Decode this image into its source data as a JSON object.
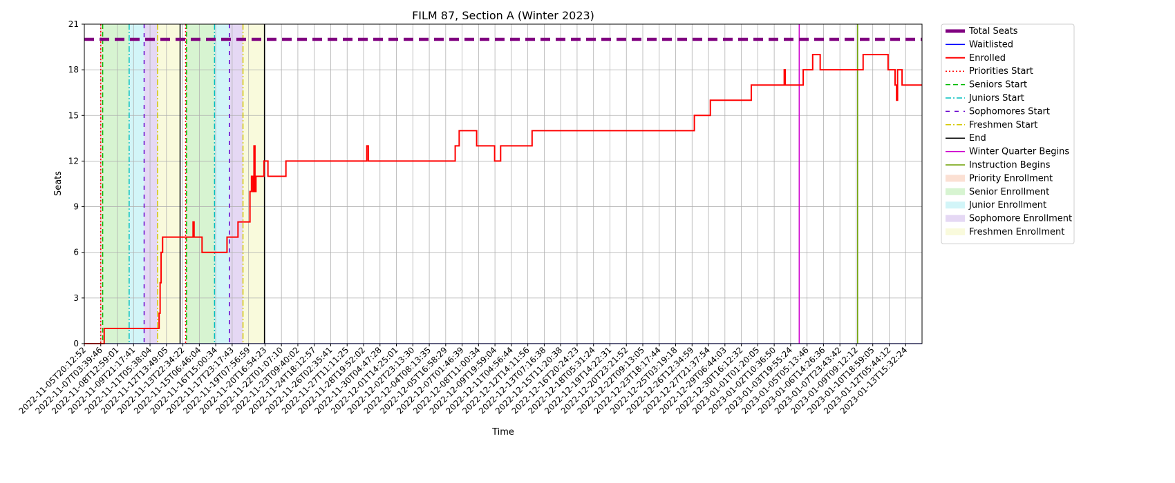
{
  "chart_data": {
    "type": "line",
    "title": "FILM 87, Section A (Winter 2023)",
    "xlabel": "Time",
    "ylabel": "Seats",
    "ylim": [
      0,
      21
    ],
    "yticks": [
      0,
      3,
      6,
      9,
      12,
      15,
      18,
      21
    ],
    "xlim": [
      "2022-11-05T20:12:52",
      "2023-01-14T18:00:00"
    ],
    "grid": true,
    "legend_placement": "outside-right-top",
    "xtick_labels": [
      "2022-11-05T20:12:52",
      "2022-11-07T03:39:46",
      "2022-11-08T12:59:01",
      "2022-11-09T21:17:41",
      "2022-11-11T05:38:04",
      "2022-11-12T13:49:05",
      "2022-11-13T22:34:22",
      "2022-11-15T06:46:04",
      "2022-11-16T15:00:34",
      "2022-11-17T23:17:43",
      "2022-11-19T07:56:59",
      "2022-11-20T16:54:23",
      "2022-11-22T01:07:10",
      "2022-11-23T09:40:02",
      "2022-11-24T18:12:57",
      "2022-11-26T02:35:41",
      "2022-11-27T11:11:25",
      "2022-11-28T19:52:02",
      "2022-11-30T04:47:28",
      "2022-12-01T14:25:01",
      "2022-12-02T23:13:30",
      "2022-12-04T08:13:35",
      "2022-12-05T16:58:29",
      "2022-12-07T01:46:39",
      "2022-12-08T11:00:34",
      "2022-12-09T19:59:04",
      "2022-12-11T04:56:44",
      "2022-12-12T14:11:56",
      "2022-12-13T07:16:38",
      "2022-12-15T11:20:38",
      "2022-12-16T20:24:23",
      "2022-12-18T05:31:24",
      "2022-12-19T14:22:31",
      "2022-12-20T23:21:52",
      "2022-12-22T09:13:05",
      "2022-12-23T18:17:44",
      "2022-12-25T03:19:18",
      "2022-12-26T12:34:59",
      "2022-12-27T21:37:54",
      "2022-12-29T06:44:03",
      "2022-12-30T16:12:32",
      "2023-01-01T01:20:05",
      "2023-01-02T10:36:50",
      "2023-01-03T19:55:24",
      "2023-01-05T05:13:46",
      "2023-01-06T14:26:36",
      "2023-01-07T23:43:42",
      "2023-01-09T09:12:12",
      "2023-01-10T18:59:05",
      "2023-01-12T05:44:12",
      "2023-01-13T15:32:24"
    ],
    "series": [
      {
        "name": "Total Seats",
        "color": "#800080",
        "style": "dashed-thick",
        "points": [
          [
            "2022-11-05T20:12:52",
            20
          ],
          [
            "2023-01-14T18:00:00",
            20
          ]
        ]
      },
      {
        "name": "Waitlisted",
        "color": "#0000ff",
        "style": "solid",
        "points": [
          [
            "2022-11-05T20:12:52",
            0
          ],
          [
            "2023-01-14T18:00:00",
            0
          ]
        ]
      },
      {
        "name": "Enrolled",
        "color": "#ff0000",
        "style": "step",
        "points": [
          [
            "2022-11-05T20:12:52",
            0
          ],
          [
            "2022-11-07T12:00:00",
            1
          ],
          [
            "2022-11-12T02:00:00",
            2
          ],
          [
            "2022-11-12T04:00:00",
            4
          ],
          [
            "2022-11-12T06:00:00",
            6
          ],
          [
            "2022-11-12T09:00:00",
            7
          ],
          [
            "2022-11-14T22:00:00",
            8
          ],
          [
            "2022-11-15T00:00:00",
            7
          ],
          [
            "2022-11-15T16:00:00",
            6
          ],
          [
            "2022-11-17T18:00:00",
            7
          ],
          [
            "2022-11-18T16:00:00",
            8
          ],
          [
            "2022-11-19T16:00:00",
            10
          ],
          [
            "2022-11-19T19:00:00",
            11
          ],
          [
            "2022-11-19T22:00:00",
            10
          ],
          [
            "2022-11-20T00:00:00",
            13
          ],
          [
            "2022-11-20T02:00:00",
            10
          ],
          [
            "2022-11-20T04:00:00",
            11
          ],
          [
            "2022-11-20T20:00:00",
            12
          ],
          [
            "2022-11-21T04:00:00",
            11
          ],
          [
            "2022-11-22T16:00:00",
            12
          ],
          [
            "2022-11-29T10:00:00",
            13
          ],
          [
            "2022-11-29T13:00:00",
            12
          ],
          [
            "2022-12-06T19:00:00",
            13
          ],
          [
            "2022-12-07T03:00:00",
            14
          ],
          [
            "2022-12-08T14:00:00",
            13
          ],
          [
            "2022-12-10T02:00:00",
            12
          ],
          [
            "2022-12-10T14:00:00",
            13
          ],
          [
            "2022-12-13T05:00:00",
            14
          ],
          [
            "2022-12-26T18:00:00",
            15
          ],
          [
            "2022-12-28T02:00:00",
            16
          ],
          [
            "2022-12-31T12:00:00",
            17
          ],
          [
            "2023-01-03T06:00:00",
            18
          ],
          [
            "2023-01-03T08:00:00",
            17
          ],
          [
            "2023-01-04T20:00:00",
            18
          ],
          [
            "2023-01-05T15:00:00",
            19
          ],
          [
            "2023-01-06T06:00:00",
            18
          ],
          [
            "2023-01-09T20:00:00",
            19
          ],
          [
            "2023-01-11T22:00:00",
            18
          ],
          [
            "2023-01-12T12:00:00",
            17
          ],
          [
            "2023-01-12T15:00:00",
            16
          ],
          [
            "2023-01-12T17:00:00",
            18
          ],
          [
            "2023-01-13T02:00:00",
            17
          ],
          [
            "2023-01-14T18:00:00",
            17
          ]
        ]
      }
    ],
    "vlines": [
      {
        "name": "Priorities Start",
        "color": "#ff0000",
        "style": "dotted",
        "x": [
          "2022-11-07T05:00:00",
          "2022-11-14T07:00:00"
        ]
      },
      {
        "name": "Seniors Start",
        "color": "#00bb00",
        "style": "dashed",
        "x": [
          "2022-11-07T09:00:00",
          "2022-11-14T09:00:00"
        ]
      },
      {
        "name": "Juniors Start",
        "color": "#00bfbf",
        "style": "dashdot",
        "x": [
          "2022-11-09T14:00:00",
          "2022-11-16T17:00:00"
        ]
      },
      {
        "name": "Sophomores Start",
        "color": "#6600cc",
        "style": "loosedash",
        "x": [
          "2022-11-10T20:00:00",
          "2022-11-17T23:00:00"
        ]
      },
      {
        "name": "Freshmen Start",
        "color": "#d4c800",
        "style": "dashdot",
        "x": [
          "2022-11-11T23:00:00",
          "2022-11-19T02:00:00"
        ]
      },
      {
        "name": "End",
        "color": "#000000",
        "style": "solid",
        "x": [
          "2022-11-13T20:00:00",
          "2022-11-20T21:00:00"
        ]
      },
      {
        "name": "Winter Quarter Begins",
        "color": "#cc00cc",
        "style": "solid",
        "x": [
          "2023-01-04T12:00:00"
        ]
      },
      {
        "name": "Instruction Begins",
        "color": "#6b9f00",
        "style": "solid",
        "x": [
          "2023-01-09T09:00:00"
        ]
      }
    ],
    "spans": [
      {
        "name": "Priority Enrollment",
        "color": "#f4a582",
        "ranges": [
          [
            "2022-11-07T05:00:00",
            "2022-11-07T09:00:00"
          ],
          [
            "2022-11-14T07:00:00",
            "2022-11-14T09:00:00"
          ]
        ]
      },
      {
        "name": "Senior Enrollment",
        "color": "#8de07a",
        "ranges": [
          [
            "2022-11-07T09:00:00",
            "2022-11-09T14:00:00"
          ],
          [
            "2022-11-14T09:00:00",
            "2022-11-16T17:00:00"
          ]
        ]
      },
      {
        "name": "Junior Enrollment",
        "color": "#7fe3ea",
        "ranges": [
          [
            "2022-11-09T14:00:00",
            "2022-11-10T20:00:00"
          ],
          [
            "2022-11-16T17:00:00",
            "2022-11-17T23:00:00"
          ]
        ]
      },
      {
        "name": "Sophomore Enrollment",
        "color": "#b48fe0",
        "ranges": [
          [
            "2022-11-10T20:00:00",
            "2022-11-11T23:00:00"
          ],
          [
            "2022-11-17T23:00:00",
            "2022-11-19T02:00:00"
          ]
        ]
      },
      {
        "name": "Freshmen Enrollment",
        "color": "#eef09a",
        "ranges": [
          [
            "2022-11-11T23:00:00",
            "2022-11-13T20:00:00"
          ],
          [
            "2022-11-19T02:00:00",
            "2022-11-20T21:00:00"
          ]
        ]
      }
    ],
    "legend": [
      {
        "label": "Total Seats",
        "kind": "line",
        "color": "#800080",
        "style": "thick"
      },
      {
        "label": "Waitlisted",
        "kind": "line",
        "color": "#0000ff",
        "style": "solid"
      },
      {
        "label": "Enrolled",
        "kind": "line",
        "color": "#ff0000",
        "style": "solid-bold"
      },
      {
        "label": "Priorities Start",
        "kind": "line",
        "color": "#ff0000",
        "style": "dotted"
      },
      {
        "label": "Seniors Start",
        "kind": "line",
        "color": "#00bb00",
        "style": "dashed"
      },
      {
        "label": "Juniors Start",
        "kind": "line",
        "color": "#00bfbf",
        "style": "dashdot"
      },
      {
        "label": "Sophomores Start",
        "kind": "line",
        "color": "#6600cc",
        "style": "loosedash"
      },
      {
        "label": "Freshmen Start",
        "kind": "line",
        "color": "#d4c800",
        "style": "dashdot"
      },
      {
        "label": "End",
        "kind": "line",
        "color": "#000000",
        "style": "solid"
      },
      {
        "label": "Winter Quarter Begins",
        "kind": "line",
        "color": "#cc00cc",
        "style": "solid"
      },
      {
        "label": "Instruction Begins",
        "kind": "line",
        "color": "#6b9f00",
        "style": "solid"
      },
      {
        "label": "Priority Enrollment",
        "kind": "patch",
        "color": "#f4a582"
      },
      {
        "label": "Senior Enrollment",
        "kind": "patch",
        "color": "#8de07a"
      },
      {
        "label": "Junior Enrollment",
        "kind": "patch",
        "color": "#7fe3ea"
      },
      {
        "label": "Sophomore Enrollment",
        "kind": "patch",
        "color": "#b48fe0"
      },
      {
        "label": "Freshmen Enrollment",
        "kind": "patch",
        "color": "#eef09a"
      }
    ]
  }
}
